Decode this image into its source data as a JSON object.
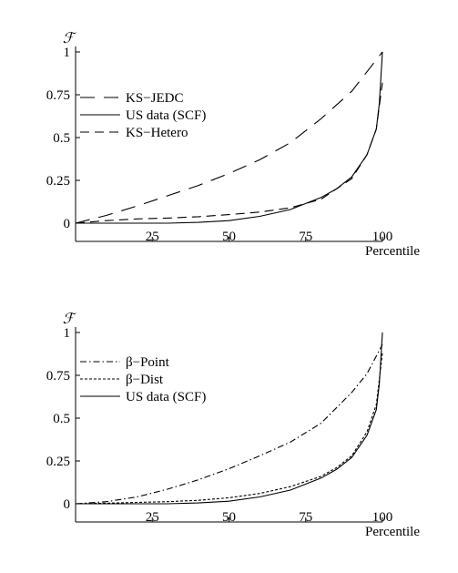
{
  "chart_data": [
    {
      "type": "line",
      "ylabel": "ℱ",
      "xlabel": "Percentile",
      "xlim": [
        0,
        100
      ],
      "ylim": [
        0,
        1
      ],
      "x_ticks": [
        "25",
        "50",
        "75",
        "100"
      ],
      "y_ticks": [
        "0",
        "0.25",
        "0.5",
        "0.75",
        "1"
      ],
      "legend_position": "top-left",
      "series": [
        {
          "name": "KS−JEDC",
          "style": "dashed-long",
          "x": [
            0,
            10,
            20,
            30,
            40,
            50,
            60,
            70,
            80,
            90,
            100
          ],
          "y": [
            0,
            0.045,
            0.1,
            0.16,
            0.22,
            0.29,
            0.37,
            0.47,
            0.61,
            0.77,
            1.0
          ]
        },
        {
          "name": "US data (SCF)",
          "style": "solid",
          "x": [
            0,
            10,
            20,
            30,
            40,
            50,
            60,
            70,
            80,
            85,
            90,
            95,
            98,
            99,
            100
          ],
          "y": [
            0,
            0,
            0,
            0,
            0.005,
            0.015,
            0.04,
            0.08,
            0.15,
            0.2,
            0.27,
            0.4,
            0.55,
            0.7,
            1.0
          ]
        },
        {
          "name": "KS−Hetero",
          "style": "dashed",
          "x": [
            0,
            10,
            20,
            30,
            40,
            50,
            60,
            70,
            80,
            90,
            95,
            98,
            100
          ],
          "y": [
            0,
            0.015,
            0.025,
            0.03,
            0.038,
            0.05,
            0.065,
            0.09,
            0.14,
            0.26,
            0.4,
            0.55,
            0.82
          ]
        }
      ]
    },
    {
      "type": "line",
      "ylabel": "ℱ",
      "xlabel": "Percentile",
      "xlim": [
        0,
        100
      ],
      "ylim": [
        0,
        1
      ],
      "x_ticks": [
        "25",
        "50",
        "75",
        "100"
      ],
      "y_ticks": [
        "0",
        "0.25",
        "0.5",
        "0.75",
        "1"
      ],
      "legend_position": "top-left",
      "series": [
        {
          "name": "β−Point",
          "style": "dashdot",
          "x": [
            0,
            10,
            20,
            30,
            40,
            50,
            60,
            70,
            80,
            90,
            95,
            100
          ],
          "y": [
            0,
            0.012,
            0.04,
            0.085,
            0.14,
            0.205,
            0.28,
            0.36,
            0.47,
            0.65,
            0.76,
            0.93
          ]
        },
        {
          "name": "β−Dist",
          "style": "dotted",
          "x": [
            0,
            10,
            20,
            30,
            40,
            50,
            60,
            70,
            80,
            85,
            90,
            95,
            98,
            100
          ],
          "y": [
            0,
            0.003,
            0.008,
            0.012,
            0.02,
            0.035,
            0.06,
            0.1,
            0.16,
            0.21,
            0.28,
            0.42,
            0.58,
            0.88
          ]
        },
        {
          "name": "US data (SCF)",
          "style": "solid",
          "x": [
            0,
            10,
            20,
            30,
            40,
            50,
            60,
            70,
            80,
            85,
            90,
            95,
            98,
            99,
            100
          ],
          "y": [
            0,
            0,
            0,
            0,
            0.005,
            0.015,
            0.04,
            0.08,
            0.15,
            0.2,
            0.27,
            0.4,
            0.55,
            0.7,
            1.0
          ]
        }
      ]
    }
  ]
}
